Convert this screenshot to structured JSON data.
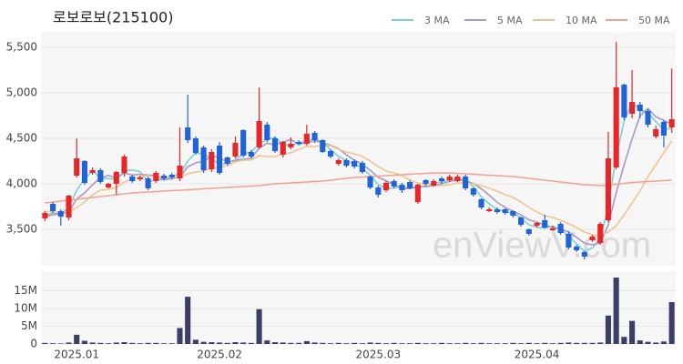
{
  "chart_data": {
    "type": "candlestick",
    "title": "로보로보(215100)",
    "watermark": "enViewV.com",
    "up_color": "#e8262a",
    "down_color": "#1f63d8",
    "grid": true,
    "categories": [
      null,
      null,
      null,
      null,
      "2025.01",
      null,
      null,
      null,
      null,
      null,
      null,
      null,
      null,
      null,
      null,
      null,
      null,
      null,
      null,
      null,
      null,
      null,
      "2025.02",
      null,
      null,
      null,
      null,
      null,
      null,
      null,
      null,
      null,
      null,
      null,
      null,
      null,
      null,
      null,
      null,
      null,
      null,
      null,
      "2025.03",
      null,
      null,
      null,
      null,
      null,
      null,
      null,
      null,
      null,
      null,
      null,
      null,
      null,
      null,
      null,
      null,
      null,
      null,
      null,
      "2025.04",
      null,
      null,
      null,
      null,
      null,
      null,
      null,
      null,
      null,
      null,
      null,
      null,
      null,
      null,
      null,
      null,
      null
    ],
    "ylim": [
      3100,
      5670
    ],
    "yticks": [
      {
        "value": 3500,
        "label": "3,500"
      },
      {
        "value": 4000,
        "label": "4,000"
      },
      {
        "value": 4500,
        "label": "4,500"
      },
      {
        "value": 5000,
        "label": "5,000"
      },
      {
        "value": 5500,
        "label": "5,500"
      }
    ],
    "ohlc": {
      "open": [
        3620,
        3780,
        3700,
        3630,
        4090,
        4250,
        4120,
        4150,
        3960,
        4000,
        4120,
        4080,
        4050,
        4060,
        4030,
        4090,
        4100,
        4060,
        4620,
        4500,
        4400,
        4160,
        4420,
        4290,
        4300,
        4590,
        4350,
        4400,
        4650,
        4500,
        4320,
        4400,
        4460,
        4440,
        4560,
        4480,
        4360,
        4220,
        4260,
        4250,
        4230,
        4080,
        3960,
        3930,
        4030,
        3990,
        4020,
        3800,
        4040,
        3980,
        4060,
        4040,
        4030,
        4080,
        3950,
        3830,
        3700,
        3720,
        3720,
        3700,
        3630,
        3500,
        3540,
        3600,
        3490,
        3560,
        3450,
        3310,
        3250,
        3380,
        3350,
        3600,
        4180,
        5090,
        4770,
        4870,
        4800,
        4520,
        4680,
        4620
      ],
      "high": [
        3700,
        3800,
        3720,
        3880,
        4500,
        4260,
        4180,
        4170,
        4010,
        4140,
        4320,
        4100,
        4090,
        4080,
        4140,
        4110,
        4120,
        4620,
        4980,
        4520,
        4420,
        4380,
        4460,
        4300,
        4520,
        4600,
        4370,
        5060,
        4680,
        4520,
        4470,
        4510,
        4480,
        4650,
        4580,
        4490,
        4380,
        4280,
        4280,
        4270,
        4250,
        4090,
        3980,
        4030,
        4050,
        4010,
        4040,
        4000,
        4050,
        4050,
        4080,
        4100,
        4100,
        4100,
        3960,
        3840,
        3740,
        3740,
        3730,
        3710,
        3640,
        3510,
        3580,
        3660,
        3540,
        3580,
        3480,
        3330,
        3260,
        3440,
        3580,
        4570,
        5560,
        5100,
        5250,
        4900,
        4820,
        4640,
        4700,
        5270
      ],
      "low": [
        3590,
        3680,
        3540,
        3600,
        4070,
        3990,
        4100,
        4000,
        3950,
        3880,
        4080,
        4010,
        4030,
        3930,
        4010,
        4040,
        4050,
        4030,
        4450,
        4320,
        4120,
        4130,
        4100,
        4200,
        4280,
        4290,
        4280,
        4380,
        4460,
        4340,
        4290,
        4380,
        4420,
        4420,
        4450,
        4340,
        4280,
        4200,
        4180,
        4170,
        4110,
        3940,
        3850,
        3910,
        3950,
        3900,
        3940,
        3780,
        3980,
        3970,
        4000,
        4020,
        4020,
        3930,
        3860,
        3720,
        3690,
        3670,
        3660,
        3630,
        3530,
        3430,
        3520,
        3510,
        3480,
        3440,
        3280,
        3250,
        3170,
        3360,
        3330,
        3580,
        4160,
        4700,
        4720,
        4720,
        4620,
        4500,
        4400,
        4560
      ],
      "close": [
        3680,
        3700,
        3640,
        3870,
        4280,
        4010,
        4150,
        4020,
        4000,
        4130,
        4300,
        4030,
        4070,
        3950,
        4120,
        4060,
        4070,
        4200,
        4480,
        4340,
        4150,
        4350,
        4120,
        4220,
        4450,
        4310,
        4300,
        4690,
        4480,
        4360,
        4460,
        4440,
        4440,
        4550,
        4480,
        4350,
        4300,
        4260,
        4200,
        4190,
        4130,
        3960,
        3880,
        4010,
        3970,
        3930,
        3950,
        3990,
        4000,
        4030,
        4030,
        4080,
        4080,
        3950,
        3880,
        3740,
        3720,
        3690,
        3680,
        3650,
        3550,
        3450,
        3570,
        3520,
        3510,
        3460,
        3300,
        3270,
        3200,
        3420,
        3560,
        4280,
        5060,
        4730,
        4900,
        4800,
        4650,
        4600,
        4530,
        4710
      ]
    },
    "moving_averages": [
      {
        "name": "3 MA",
        "color": "#7ccfd2",
        "values": [
          3650,
          3680,
          3673,
          3737,
          3930,
          4053,
          4147,
          4060,
          4057,
          4050,
          4143,
          4153,
          4133,
          4017,
          4047,
          4043,
          4083,
          4110,
          4250,
          4340,
          4323,
          4280,
          4207,
          4230,
          4263,
          4327,
          4353,
          4433,
          4490,
          4510,
          4433,
          4420,
          4447,
          4477,
          4490,
          4460,
          4377,
          4303,
          4253,
          4217,
          4173,
          4093,
          3990,
          3950,
          3953,
          3970,
          3950,
          3957,
          3980,
          4007,
          4020,
          4047,
          4063,
          4037,
          3970,
          3857,
          3780,
          3717,
          3697,
          3673,
          3627,
          3550,
          3523,
          3513,
          3533,
          3497,
          3423,
          3343,
          3257,
          3297,
          3393,
          3753,
          4300,
          4690,
          4897,
          4810,
          4783,
          4683,
          4593,
          4613
        ]
      },
      {
        "name": "5 MA",
        "color": "#a898c4",
        "values": [
          3640,
          3660,
          3670,
          3690,
          3834,
          3900,
          3990,
          4066,
          4092,
          4062,
          4120,
          4096,
          4106,
          4096,
          4094,
          4046,
          4054,
          4080,
          4186,
          4230,
          4248,
          4304,
          4288,
          4236,
          4258,
          4270,
          4280,
          4394,
          4446,
          4428,
          4460,
          4486,
          4436,
          4450,
          4474,
          4452,
          4424,
          4388,
          4318,
          4260,
          4216,
          4148,
          4072,
          4034,
          3990,
          3950,
          3948,
          3970,
          3968,
          3980,
          4000,
          4026,
          4044,
          4034,
          4004,
          3946,
          3874,
          3796,
          3742,
          3696,
          3658,
          3604,
          3580,
          3548,
          3520,
          3502,
          3472,
          3412,
          3348,
          3330,
          3350,
          3546,
          3904,
          4210,
          4494,
          4748,
          4828,
          4736,
          4696,
          4658
        ]
      },
      {
        "name": "10 MA",
        "color": "#f2c48c",
        "values": [
          3700,
          3690,
          3680,
          3690,
          3740,
          3800,
          3880,
          3930,
          3940,
          3960,
          4020,
          4050,
          4080,
          4090,
          4070,
          4080,
          4070,
          4070,
          4110,
          4130,
          4140,
          4170,
          4180,
          4200,
          4240,
          4260,
          4260,
          4310,
          4300,
          4300,
          4330,
          4340,
          4380,
          4410,
          4410,
          4420,
          4420,
          4380,
          4350,
          4330,
          4300,
          4250,
          4190,
          4140,
          4120,
          4090,
          4040,
          4010,
          3990,
          3980,
          3980,
          3990,
          4010,
          4010,
          4000,
          3980,
          3950,
          3920,
          3880,
          3850,
          3800,
          3740,
          3690,
          3650,
          3630,
          3600,
          3560,
          3520,
          3470,
          3440,
          3430,
          3470,
          3540,
          3660,
          3790,
          3920,
          4080,
          4210,
          4340,
          4470
        ]
      },
      {
        "name": "50 MA",
        "color": "#f4a08e",
        "values": [
          3790,
          3800,
          3810,
          3820,
          3830,
          3840,
          3850,
          3860,
          3870,
          3880,
          3890,
          3900,
          3905,
          3910,
          3915,
          3920,
          3925,
          3930,
          3935,
          3940,
          3945,
          3950,
          3955,
          3960,
          3965,
          3970,
          3975,
          3980,
          3990,
          4000,
          4005,
          4010,
          4015,
          4020,
          4025,
          4030,
          4040,
          4050,
          4060,
          4070,
          4075,
          4080,
          4085,
          4090,
          4095,
          4100,
          4105,
          4110,
          4115,
          4118,
          4120,
          4118,
          4115,
          4110,
          4105,
          4100,
          4095,
          4090,
          4085,
          4080,
          4070,
          4060,
          4050,
          4040,
          4030,
          4020,
          4010,
          4000,
          3990,
          3985,
          3980,
          3985,
          3995,
          4005,
          4015,
          4020,
          4025,
          4030,
          4035,
          4040
        ]
      }
    ],
    "volume": {
      "color": "#3b3e66",
      "ylim": [
        0,
        20500000
      ],
      "yticks": [
        0,
        {
          "value": 5000000,
          "label": "5M"
        },
        {
          "value": 10000000,
          "label": "10M"
        },
        {
          "value": 15000000,
          "label": "15M"
        }
      ],
      "values": [
        300000,
        200000,
        150000,
        400000,
        2600000,
        900000,
        400000,
        300000,
        200000,
        400000,
        500000,
        300000,
        200000,
        300000,
        300000,
        200000,
        200000,
        4500000,
        13300000,
        1200000,
        600000,
        500000,
        400000,
        300000,
        500000,
        400000,
        300000,
        9800000,
        1000000,
        500000,
        400000,
        300000,
        300000,
        800000,
        400000,
        300000,
        200000,
        300000,
        200000,
        300000,
        200000,
        400000,
        300000,
        200000,
        300000,
        200000,
        200000,
        300000,
        200000,
        200000,
        300000,
        200000,
        200000,
        300000,
        200000,
        300000,
        200000,
        200000,
        200000,
        300000,
        200000,
        300000,
        200000,
        300000,
        200000,
        300000,
        400000,
        300000,
        300000,
        300000,
        400000,
        8000000,
        18700000,
        2000000,
        6500000,
        1000000,
        600000,
        400000,
        700000,
        11800000
      ]
    }
  }
}
